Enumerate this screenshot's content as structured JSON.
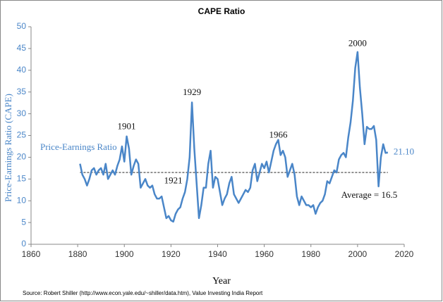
{
  "chart_data": {
    "type": "line",
    "title": "CAPE Ratio",
    "x_label": "Year",
    "y_label": "Price-Earnings Ratio (CAPE)",
    "source": "Source: Robert Shiller (http://www.econ.yale.edu/~shiller/data.htm), Value Investing India Report",
    "xlim": [
      1860,
      2020
    ],
    "xticks": [
      1860,
      1880,
      1900,
      1920,
      1940,
      1960,
      1980,
      2000,
      2020
    ],
    "ylim": [
      0,
      50
    ],
    "yticks": [
      0,
      5,
      10,
      15,
      20,
      25,
      30,
      35,
      40,
      45,
      50
    ],
    "grid": false,
    "average": 16.5,
    "series": [
      {
        "name": "Price-Earnings Ratio",
        "color": "#4a86c8",
        "x": [
          1881,
          1882,
          1883,
          1884,
          1885,
          1886,
          1887,
          1888,
          1889,
          1890,
          1891,
          1892,
          1893,
          1894,
          1895,
          1896,
          1897,
          1898,
          1899,
          1900,
          1901,
          1902,
          1903,
          1904,
          1905,
          1906,
          1907,
          1908,
          1909,
          1910,
          1911,
          1912,
          1913,
          1914,
          1915,
          1916,
          1917,
          1918,
          1919,
          1920,
          1921,
          1922,
          1923,
          1924,
          1925,
          1926,
          1927,
          1928,
          1929,
          1930,
          1931,
          1932,
          1933,
          1934,
          1935,
          1936,
          1937,
          1938,
          1939,
          1940,
          1941,
          1942,
          1943,
          1944,
          1945,
          1946,
          1947,
          1948,
          1949,
          1950,
          1951,
          1952,
          1953,
          1954,
          1955,
          1956,
          1957,
          1958,
          1959,
          1960,
          1961,
          1962,
          1963,
          1964,
          1965,
          1966,
          1967,
          1968,
          1969,
          1970,
          1971,
          1972,
          1973,
          1974,
          1975,
          1976,
          1977,
          1978,
          1979,
          1980,
          1981,
          1982,
          1983,
          1984,
          1985,
          1986,
          1987,
          1988,
          1989,
          1990,
          1991,
          1992,
          1993,
          1994,
          1995,
          1996,
          1997,
          1998,
          1999,
          2000,
          2001,
          2002,
          2003,
          2004,
          2005,
          2006,
          2007,
          2008,
          2009,
          2010,
          2011,
          2012,
          2013
        ],
        "values": [
          18.5,
          16,
          15,
          13.5,
          15,
          17,
          17.5,
          16,
          17,
          17.5,
          16,
          18.5,
          15,
          16,
          17,
          16,
          18,
          19.5,
          22.5,
          19,
          24.8,
          22,
          16,
          18,
          19.5,
          18.5,
          13,
          14,
          15,
          13.5,
          13,
          13.5,
          11.5,
          10.5,
          10.5,
          11,
          8.5,
          6,
          6.5,
          5.5,
          5.2,
          7,
          8,
          8.5,
          10.5,
          12,
          15,
          20,
          32.6,
          22,
          14,
          6,
          9,
          13,
          13,
          18.5,
          21.5,
          13,
          15.5,
          15,
          12,
          9,
          10.5,
          11.5,
          14,
          15.5,
          11.5,
          10.5,
          9.5,
          10.5,
          11.5,
          12.5,
          12,
          13,
          17,
          18.5,
          14.5,
          16.5,
          18.5,
          17.5,
          19,
          16.5,
          19,
          21.5,
          23,
          24,
          20.5,
          21.5,
          20,
          15.5,
          17,
          18.5,
          16,
          11,
          9,
          11,
          10,
          9,
          9,
          8.5,
          9,
          7,
          8.5,
          9.5,
          10,
          11.5,
          14.5,
          14,
          15.5,
          17,
          16.5,
          19.5,
          20.5,
          21,
          20,
          24.5,
          28,
          33,
          40.5,
          44.2,
          36,
          30,
          23,
          27,
          26.5,
          26.5,
          27.2,
          24,
          13.3,
          20,
          23,
          21,
          21.1
        ]
      }
    ],
    "annotations": [
      {
        "text": "1901",
        "x": 1901,
        "y": 26.9
      },
      {
        "text": "1921",
        "x": 1921,
        "y": 14.5
      },
      {
        "text": "1929",
        "x": 1929,
        "y": 34.8
      },
      {
        "text": "1966",
        "x": 1966,
        "y": 25
      },
      {
        "text": "2000",
        "x": 2000,
        "y": 46
      },
      {
        "text": "21.10",
        "x": 2013,
        "y": 21.1
      },
      {
        "text": "Average = 16.5",
        "x": 2005,
        "y": 11.2
      }
    ]
  }
}
